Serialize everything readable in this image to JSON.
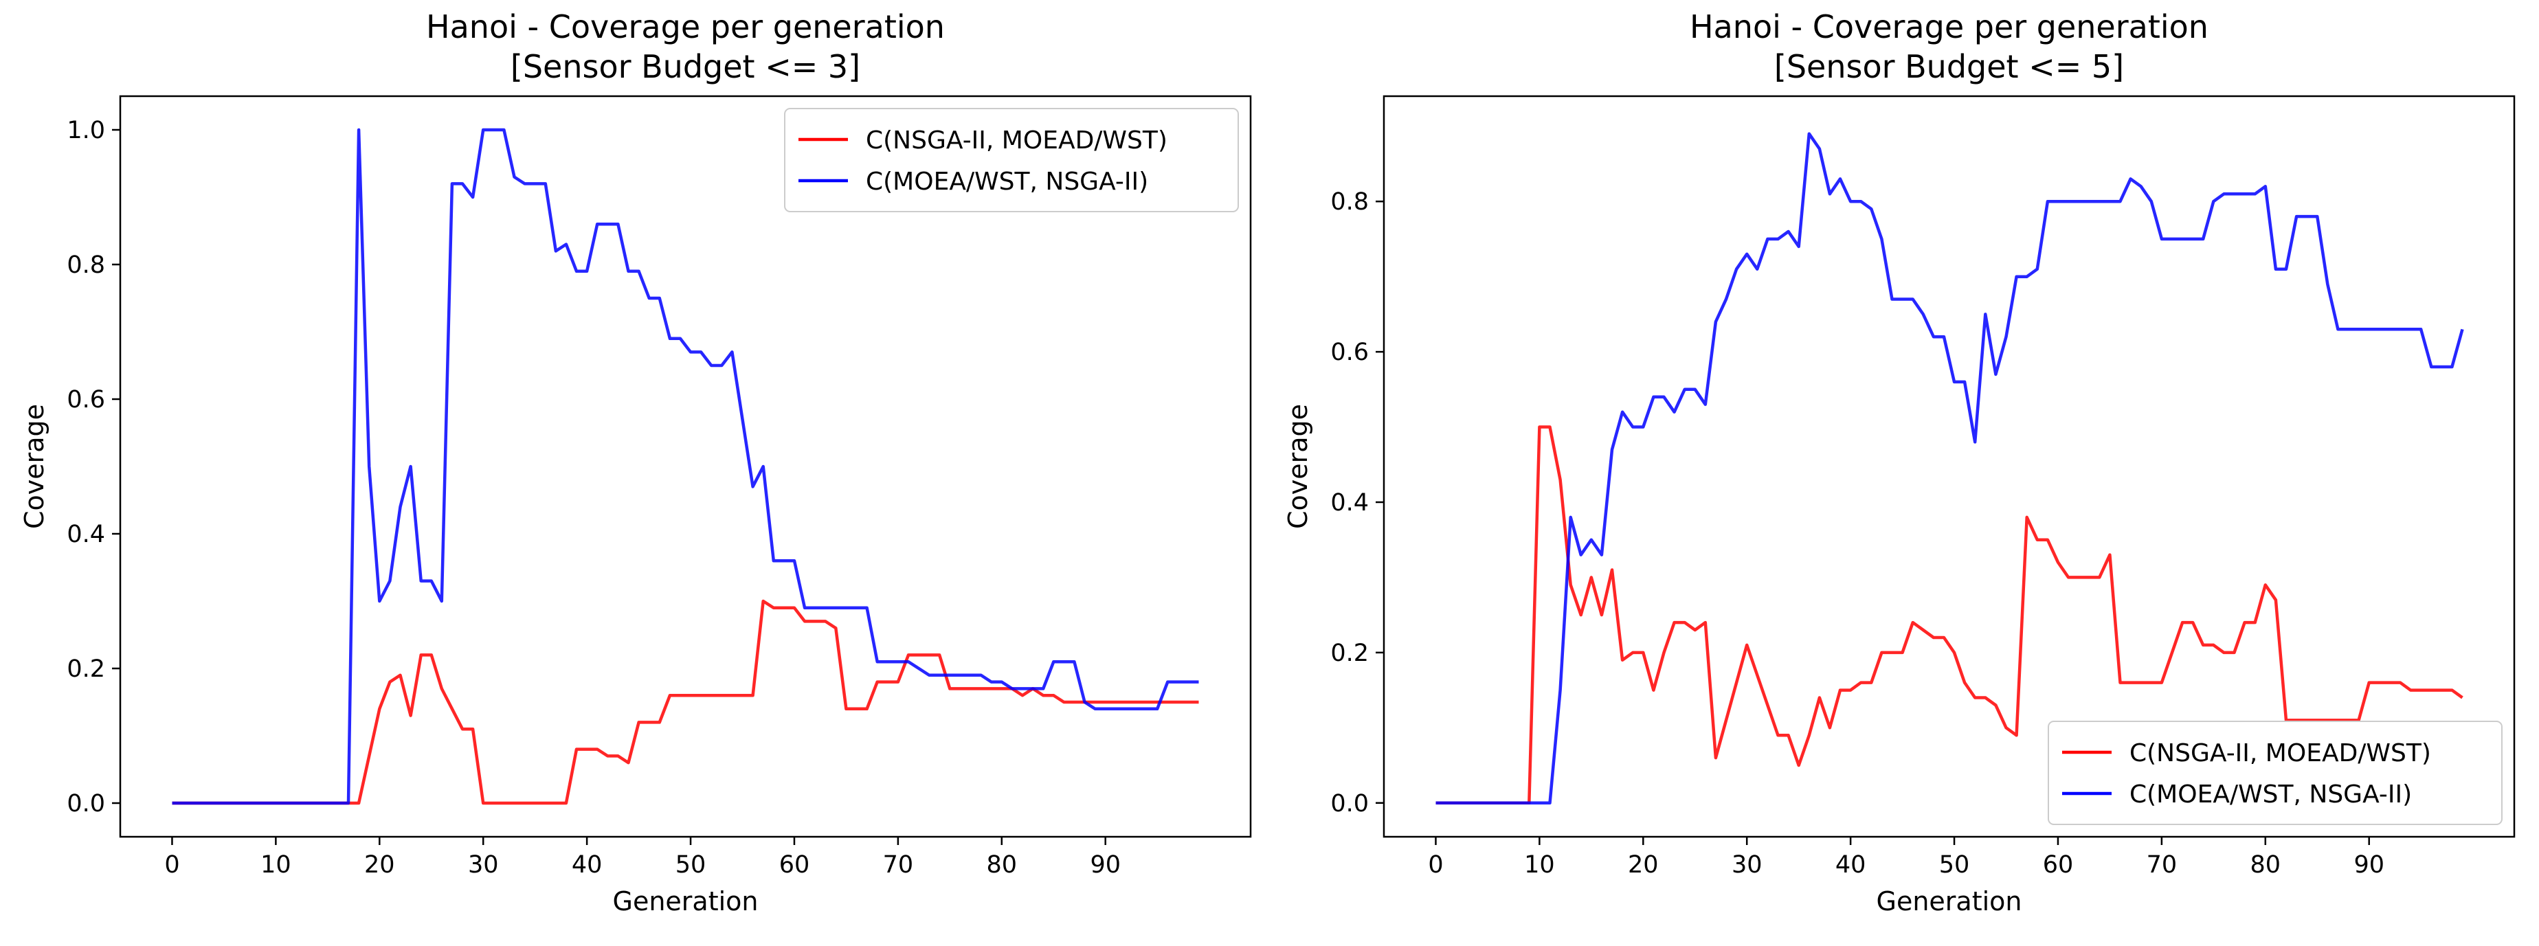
{
  "chart_data": [
    {
      "type": "line",
      "title_lines": [
        "Hanoi - Coverage per generation",
        "[Sensor Budget <= 3]"
      ],
      "xlabel": "Generation",
      "ylabel": "Coverage",
      "xlim": [
        -5,
        104
      ],
      "ylim": [
        -0.05,
        1.05
      ],
      "xticks": [
        0,
        10,
        20,
        30,
        40,
        50,
        60,
        70,
        80,
        90
      ],
      "yticks": [
        0.0,
        0.2,
        0.4,
        0.6,
        0.8,
        1.0
      ],
      "ytick_labels": [
        "0.0",
        "0.2",
        "0.4",
        "0.6",
        "0.8",
        "1.0"
      ],
      "legend_position": "top-right",
      "series": [
        {
          "name": "C(NSGA-II, MOEAD/WST)",
          "color": "#ff0000",
          "x": [
            0,
            1,
            2,
            3,
            4,
            5,
            6,
            7,
            8,
            9,
            10,
            11,
            12,
            13,
            14,
            15,
            16,
            17,
            18,
            19,
            20,
            21,
            22,
            23,
            24,
            25,
            26,
            27,
            28,
            29,
            30,
            31,
            32,
            33,
            34,
            35,
            36,
            37,
            38,
            39,
            40,
            41,
            42,
            43,
            44,
            45,
            46,
            47,
            48,
            49,
            50,
            51,
            52,
            53,
            54,
            55,
            56,
            57,
            58,
            59,
            60,
            61,
            62,
            63,
            64,
            65,
            66,
            67,
            68,
            69,
            70,
            71,
            72,
            73,
            74,
            75,
            76,
            77,
            78,
            79,
            80,
            81,
            82,
            83,
            84,
            85,
            86,
            87,
            88,
            89,
            90,
            91,
            92,
            93,
            94,
            95,
            96,
            97,
            98,
            99
          ],
          "values": [
            0,
            0,
            0,
            0,
            0,
            0,
            0,
            0,
            0,
            0,
            0,
            0,
            0,
            0,
            0,
            0,
            0,
            0,
            0,
            0.07,
            0.14,
            0.18,
            0.19,
            0.13,
            0.22,
            0.22,
            0.17,
            0.14,
            0.11,
            0.11,
            0,
            0,
            0,
            0,
            0,
            0,
            0,
            0,
            0,
            0.08,
            0.08,
            0.08,
            0.07,
            0.07,
            0.06,
            0.12,
            0.12,
            0.12,
            0.16,
            0.16,
            0.16,
            0.16,
            0.16,
            0.16,
            0.16,
            0.16,
            0.16,
            0.3,
            0.29,
            0.29,
            0.29,
            0.27,
            0.27,
            0.27,
            0.26,
            0.14,
            0.14,
            0.14,
            0.18,
            0.18,
            0.18,
            0.22,
            0.22,
            0.22,
            0.22,
            0.17,
            0.17,
            0.17,
            0.17,
            0.17,
            0.17,
            0.17,
            0.16,
            0.17,
            0.16,
            0.16,
            0.15,
            0.15,
            0.15,
            0.15,
            0.15,
            0.15,
            0.15,
            0.15,
            0.15,
            0.15,
            0.15,
            0.15,
            0.15,
            0.15
          ]
        },
        {
          "name": "C(MOEA/WST, NSGA-II)",
          "color": "#0000ff",
          "x": [
            0,
            1,
            2,
            3,
            4,
            5,
            6,
            7,
            8,
            9,
            10,
            11,
            12,
            13,
            14,
            15,
            16,
            17,
            18,
            19,
            20,
            21,
            22,
            23,
            24,
            25,
            26,
            27,
            28,
            29,
            30,
            31,
            32,
            33,
            34,
            35,
            36,
            37,
            38,
            39,
            40,
            41,
            42,
            43,
            44,
            45,
            46,
            47,
            48,
            49,
            50,
            51,
            52,
            53,
            54,
            55,
            56,
            57,
            58,
            59,
            60,
            61,
            62,
            63,
            64,
            65,
            66,
            67,
            68,
            69,
            70,
            71,
            72,
            73,
            74,
            75,
            76,
            77,
            78,
            79,
            80,
            81,
            82,
            83,
            84,
            85,
            86,
            87,
            88,
            89,
            90,
            91,
            92,
            93,
            94,
            95,
            96,
            97,
            98,
            99
          ],
          "values": [
            0,
            0,
            0,
            0,
            0,
            0,
            0,
            0,
            0,
            0,
            0,
            0,
            0,
            0,
            0,
            0,
            0,
            0,
            1.0,
            0.5,
            0.3,
            0.33,
            0.44,
            0.5,
            0.33,
            0.33,
            0.3,
            0.92,
            0.92,
            0.9,
            1.0,
            1.0,
            1.0,
            0.93,
            0.92,
            0.92,
            0.92,
            0.82,
            0.83,
            0.79,
            0.79,
            0.86,
            0.86,
            0.86,
            0.79,
            0.79,
            0.75,
            0.75,
            0.69,
            0.69,
            0.67,
            0.67,
            0.65,
            0.65,
            0.67,
            0.57,
            0.47,
            0.5,
            0.36,
            0.36,
            0.36,
            0.29,
            0.29,
            0.29,
            0.29,
            0.29,
            0.29,
            0.29,
            0.21,
            0.21,
            0.21,
            0.21,
            0.2,
            0.19,
            0.19,
            0.19,
            0.19,
            0.19,
            0.19,
            0.18,
            0.18,
            0.17,
            0.17,
            0.17,
            0.17,
            0.21,
            0.21,
            0.21,
            0.15,
            0.14,
            0.14,
            0.14,
            0.14,
            0.14,
            0.14,
            0.14,
            0.18,
            0.18,
            0.18,
            0.18
          ]
        }
      ]
    },
    {
      "type": "line",
      "title_lines": [
        "Hanoi - Coverage per generation",
        "[Sensor Budget <= 5]"
      ],
      "xlabel": "Generation",
      "ylabel": "Coverage",
      "xlim": [
        -5,
        104
      ],
      "ylim": [
        -0.045,
        0.94
      ],
      "xticks": [
        0,
        10,
        20,
        30,
        40,
        50,
        60,
        70,
        80,
        90
      ],
      "yticks": [
        0.0,
        0.2,
        0.4,
        0.6,
        0.8
      ],
      "ytick_labels": [
        "0.0",
        "0.2",
        "0.4",
        "0.6",
        "0.8"
      ],
      "legend_position": "bottom-right",
      "series": [
        {
          "name": "C(NSGA-II, MOEAD/WST)",
          "color": "#ff0000",
          "x": [
            0,
            1,
            2,
            3,
            4,
            5,
            6,
            7,
            8,
            9,
            10,
            11,
            12,
            13,
            14,
            15,
            16,
            17,
            18,
            19,
            20,
            21,
            22,
            23,
            24,
            25,
            26,
            27,
            28,
            29,
            30,
            31,
            32,
            33,
            34,
            35,
            36,
            37,
            38,
            39,
            40,
            41,
            42,
            43,
            44,
            45,
            46,
            47,
            48,
            49,
            50,
            51,
            52,
            53,
            54,
            55,
            56,
            57,
            58,
            59,
            60,
            61,
            62,
            63,
            64,
            65,
            66,
            67,
            68,
            69,
            70,
            71,
            72,
            73,
            74,
            75,
            76,
            77,
            78,
            79,
            80,
            81,
            82,
            83,
            84,
            85,
            86,
            87,
            88,
            89,
            90,
            91,
            92,
            93,
            94,
            95,
            96,
            97,
            98,
            99
          ],
          "values": [
            0,
            0,
            0,
            0,
            0,
            0,
            0,
            0,
            0,
            0,
            0.5,
            0.5,
            0.43,
            0.29,
            0.25,
            0.3,
            0.25,
            0.31,
            0.19,
            0.2,
            0.2,
            0.15,
            0.2,
            0.24,
            0.24,
            0.23,
            0.24,
            0.06,
            0.11,
            0.16,
            0.21,
            0.17,
            0.13,
            0.09,
            0.09,
            0.05,
            0.09,
            0.14,
            0.1,
            0.15,
            0.15,
            0.16,
            0.16,
            0.2,
            0.2,
            0.2,
            0.24,
            0.23,
            0.22,
            0.22,
            0.2,
            0.16,
            0.14,
            0.14,
            0.13,
            0.1,
            0.09,
            0.38,
            0.35,
            0.35,
            0.32,
            0.3,
            0.3,
            0.3,
            0.3,
            0.33,
            0.16,
            0.16,
            0.16,
            0.16,
            0.16,
            0.2,
            0.24,
            0.24,
            0.21,
            0.21,
            0.2,
            0.2,
            0.24,
            0.24,
            0.29,
            0.27,
            0.11,
            0.11,
            0.11,
            0.11,
            0.11,
            0.11,
            0.11,
            0.11,
            0.16,
            0.16,
            0.16,
            0.16,
            0.15,
            0.15,
            0.15,
            0.15,
            0.15,
            0.14
          ]
        },
        {
          "name": "C(MOEA/WST, NSGA-II)",
          "color": "#0000ff",
          "x": [
            0,
            1,
            2,
            3,
            4,
            5,
            6,
            7,
            8,
            9,
            10,
            11,
            12,
            13,
            14,
            15,
            16,
            17,
            18,
            19,
            20,
            21,
            22,
            23,
            24,
            25,
            26,
            27,
            28,
            29,
            30,
            31,
            32,
            33,
            34,
            35,
            36,
            37,
            38,
            39,
            40,
            41,
            42,
            43,
            44,
            45,
            46,
            47,
            48,
            49,
            50,
            51,
            52,
            53,
            54,
            55,
            56,
            57,
            58,
            59,
            60,
            61,
            62,
            63,
            64,
            65,
            66,
            67,
            68,
            69,
            70,
            71,
            72,
            73,
            74,
            75,
            76,
            77,
            78,
            79,
            80,
            81,
            82,
            83,
            84,
            85,
            86,
            87,
            88,
            89,
            90,
            91,
            92,
            93,
            94,
            95,
            96,
            97,
            98,
            99
          ],
          "values": [
            0,
            0,
            0,
            0,
            0,
            0,
            0,
            0,
            0,
            0,
            0,
            0,
            0.15,
            0.38,
            0.33,
            0.35,
            0.33,
            0.47,
            0.52,
            0.5,
            0.5,
            0.54,
            0.54,
            0.52,
            0.55,
            0.55,
            0.53,
            0.64,
            0.67,
            0.71,
            0.73,
            0.71,
            0.75,
            0.75,
            0.76,
            0.74,
            0.89,
            0.87,
            0.81,
            0.83,
            0.8,
            0.8,
            0.79,
            0.75,
            0.67,
            0.67,
            0.67,
            0.65,
            0.62,
            0.62,
            0.56,
            0.56,
            0.48,
            0.65,
            0.57,
            0.62,
            0.7,
            0.7,
            0.71,
            0.8,
            0.8,
            0.8,
            0.8,
            0.8,
            0.8,
            0.8,
            0.8,
            0.83,
            0.82,
            0.8,
            0.75,
            0.75,
            0.75,
            0.75,
            0.75,
            0.8,
            0.81,
            0.81,
            0.81,
            0.81,
            0.82,
            0.71,
            0.71,
            0.78,
            0.78,
            0.78,
            0.69,
            0.63,
            0.63,
            0.63,
            0.63,
            0.63,
            0.63,
            0.63,
            0.63,
            0.63,
            0.58,
            0.58,
            0.58,
            0.63
          ]
        }
      ]
    }
  ]
}
